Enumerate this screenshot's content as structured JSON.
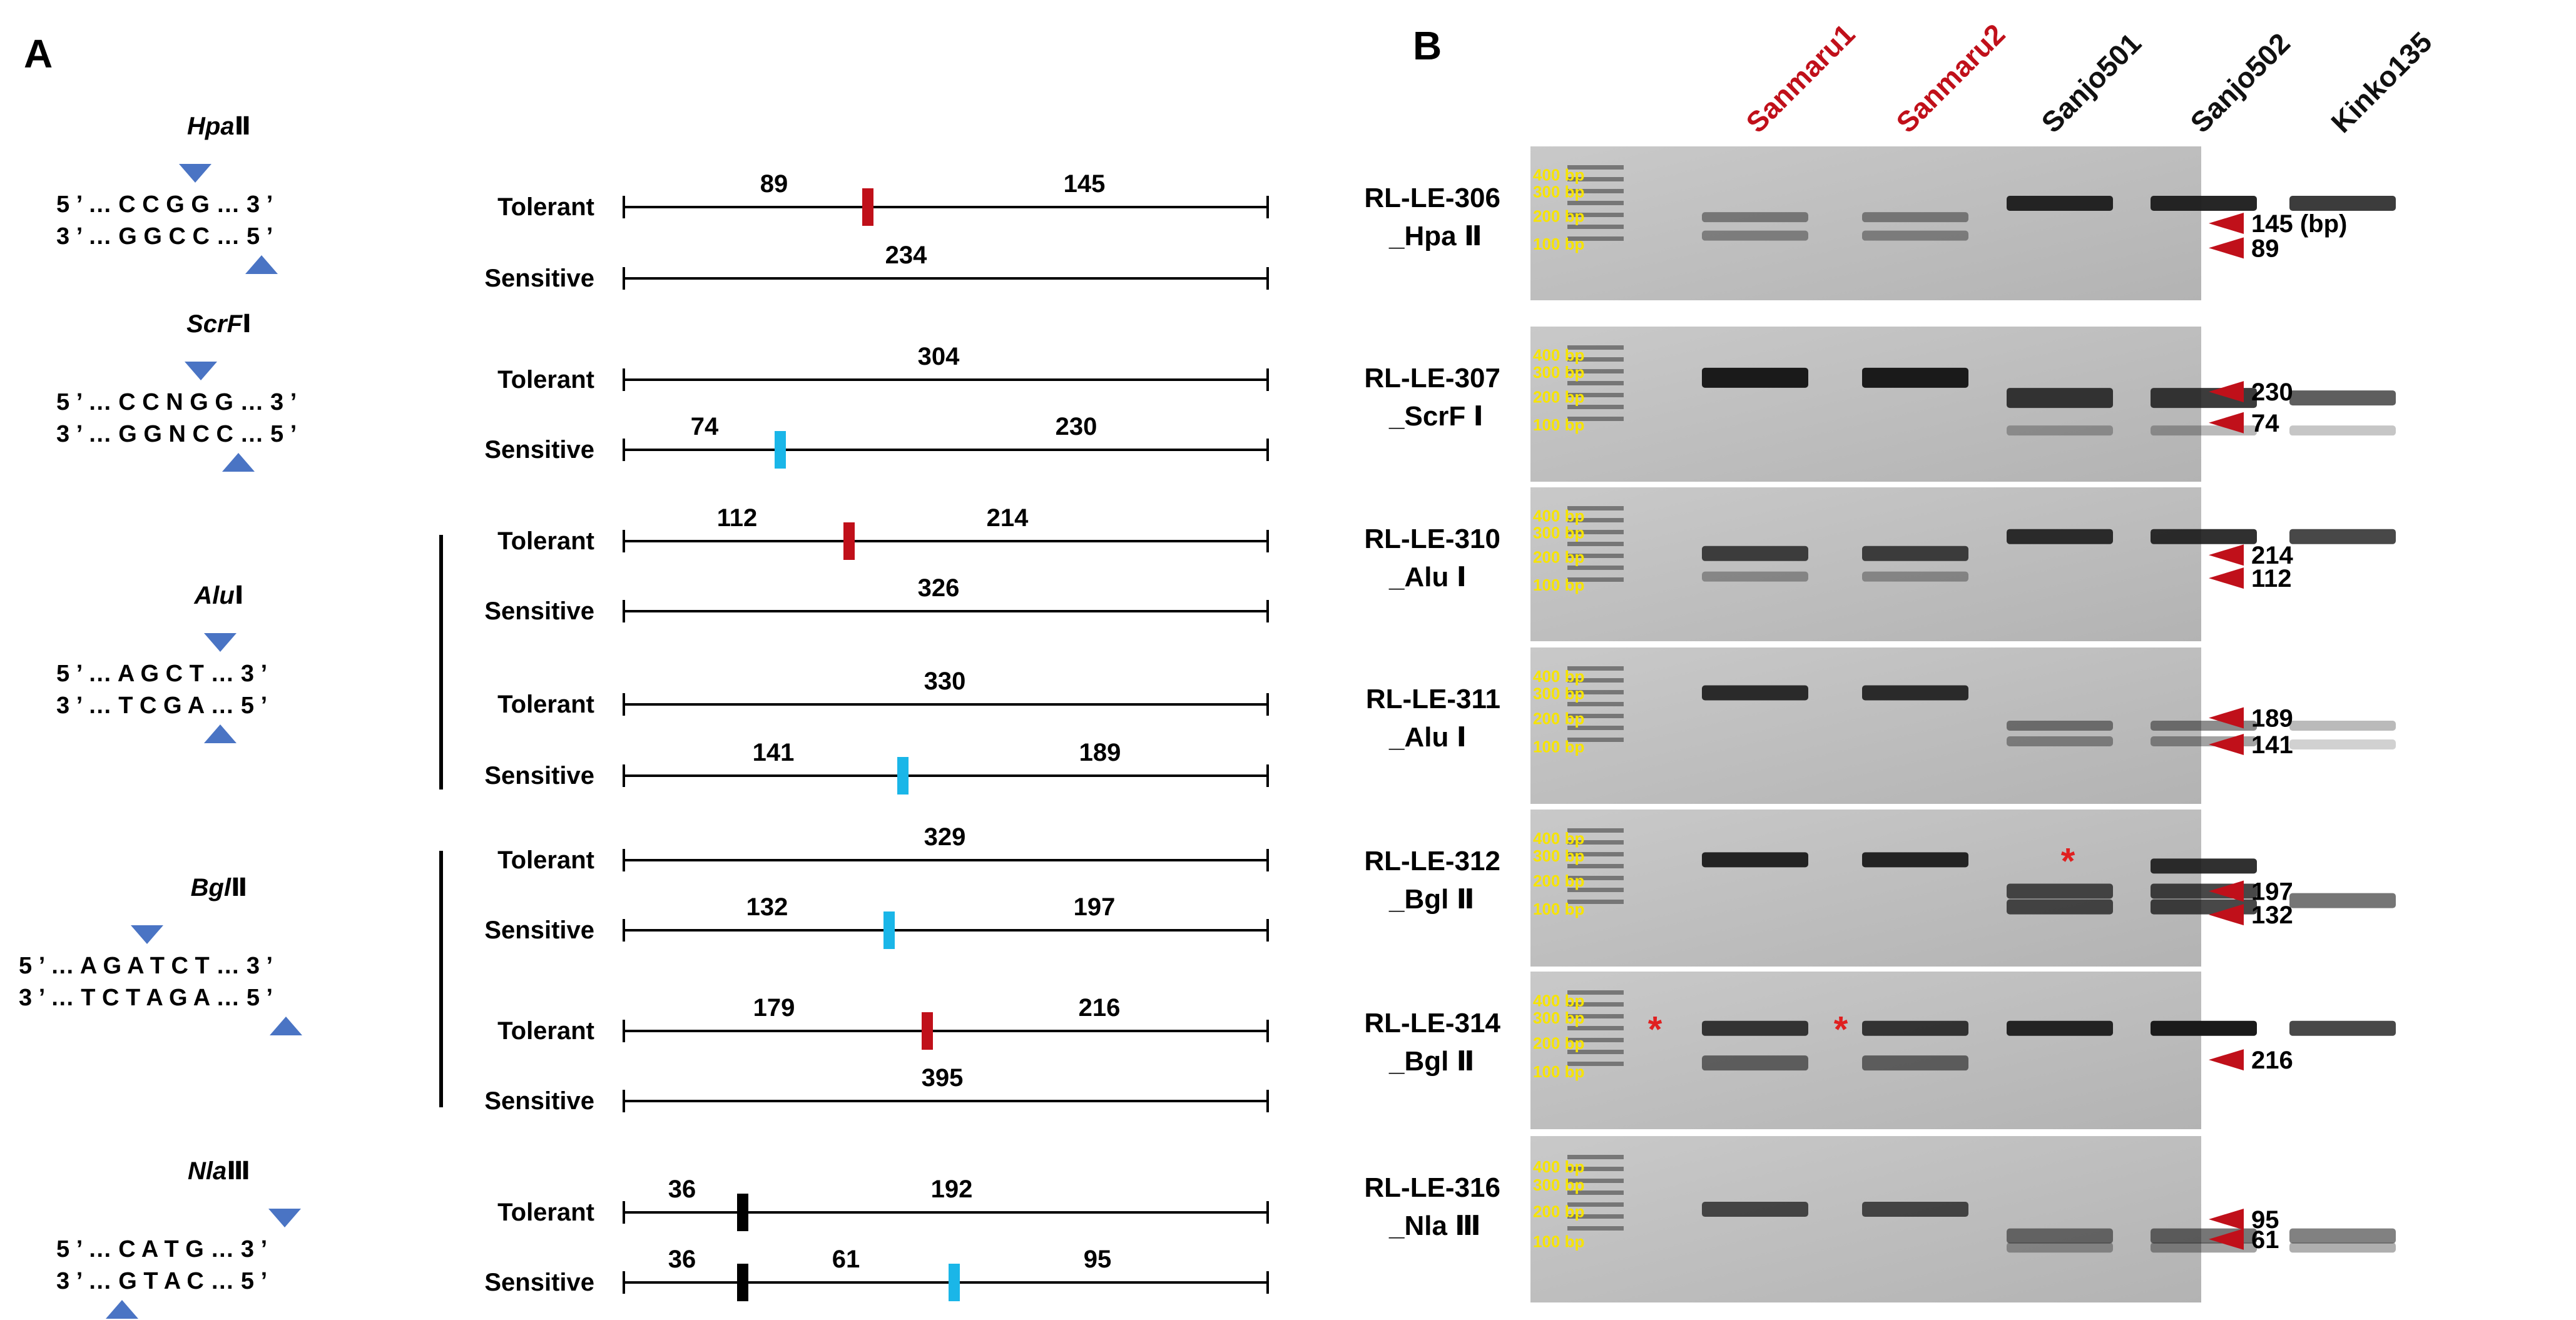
{
  "panel_a": {
    "label": "A",
    "enzymes": [
      {
        "name": "Hpa",
        "numeral": "Ⅱ",
        "top": "5 ’ … C C G G … 3 ’",
        "bottom": "3 ’ … G G C C … 5 ’"
      },
      {
        "name": "ScrF",
        "numeral": "Ⅰ",
        "top": "5 ’ … C C N G G … 3 ’",
        "bottom": "3 ’ … G G N C C … 5 ’"
      },
      {
        "name": "Alu",
        "numeral": "Ⅰ",
        "top": "5 ’ … A G C T … 3 ’",
        "bottom": "3 ’ … T C G A … 5 ’"
      },
      {
        "name": "Bgl",
        "numeral": "Ⅱ",
        "top": "5 ’ … A G A T C T … 3 ’",
        "bottom": "3 ’ … T C T A G A … 5 ’"
      },
      {
        "name": "Nla",
        "numeral": "Ⅲ",
        "top": "5 ’ … C A T G … 3 ’",
        "bottom": "3 ’ … G T A C … 5 ’"
      }
    ],
    "rows": [
      {
        "label": "Tolerant",
        "frags": [
          "89",
          "145"
        ],
        "cut": "red"
      },
      {
        "label": "Sensitive",
        "frags": [
          "234"
        ],
        "cut": ""
      },
      {
        "label": "Tolerant",
        "frags": [
          "304"
        ],
        "cut": ""
      },
      {
        "label": "Sensitive",
        "frags": [
          "74",
          "230"
        ],
        "cut": "blue"
      },
      {
        "label": "Tolerant",
        "frags": [
          "112",
          "214"
        ],
        "cut": "red"
      },
      {
        "label": "Sensitive",
        "frags": [
          "326"
        ],
        "cut": ""
      },
      {
        "label": "Tolerant",
        "frags": [
          "330"
        ],
        "cut": ""
      },
      {
        "label": "Sensitive",
        "frags": [
          "141",
          "189"
        ],
        "cut": "blue"
      },
      {
        "label": "Tolerant",
        "frags": [
          "329"
        ],
        "cut": ""
      },
      {
        "label": "Sensitive",
        "frags": [
          "132",
          "197"
        ],
        "cut": "blue"
      },
      {
        "label": "Tolerant",
        "frags": [
          "179",
          "216"
        ],
        "cut": "red"
      },
      {
        "label": "Sensitive",
        "frags": [
          "395"
        ],
        "cut": ""
      },
      {
        "label": "Tolerant",
        "frags": [
          "36",
          "192"
        ],
        "cut": "black"
      },
      {
        "label": "Sensitive",
        "frags": [
          "36",
          "61",
          "95"
        ],
        "cut": "black+blue"
      }
    ]
  },
  "panel_b": {
    "label": "B",
    "lanes": [
      {
        "name": "Sanmaru1",
        "color": "#c0101a"
      },
      {
        "name": "Sanmaru2",
        "color": "#c0101a"
      },
      {
        "name": "Sanjo501",
        "color": "#111111"
      },
      {
        "name": "Sanjo502",
        "color": "#111111"
      },
      {
        "name": "Kinko135",
        "color": "#111111"
      }
    ],
    "ladder": [
      "400 bp",
      "300 bp",
      "200 bp",
      "100 bp"
    ],
    "gels": [
      {
        "marker": "RL-LE-306",
        "enzyme": "_Hpa Ⅱ",
        "sizes": [
          "145 (bp)",
          "89"
        ]
      },
      {
        "marker": "RL-LE-307",
        "enzyme": "_ScrF Ⅰ",
        "sizes": [
          "230",
          "74"
        ]
      },
      {
        "marker": "RL-LE-310",
        "enzyme": "_Alu Ⅰ",
        "sizes": [
          "214",
          "112"
        ]
      },
      {
        "marker": "RL-LE-311",
        "enzyme": "_Alu Ⅰ",
        "sizes": [
          "189",
          "141"
        ]
      },
      {
        "marker": "RL-LE-312",
        "enzyme": "_Bgl Ⅱ",
        "sizes": [
          "197",
          "132"
        ]
      },
      {
        "marker": "RL-LE-314",
        "enzyme": "_Bgl Ⅱ",
        "sizes": [
          "216"
        ]
      },
      {
        "marker": "RL-LE-316",
        "enzyme": "_Nla Ⅲ",
        "sizes": [
          "95",
          "61"
        ]
      }
    ],
    "asterisk": "*"
  },
  "colors": {
    "tolerant_cut": "#c0101a",
    "sensitive_cut": "#1ab6e8",
    "fixed_cut": "#000000",
    "site_arrow": "#4a74c4",
    "ladder_text": "#f7e400",
    "size_arrow": "#c0101a"
  }
}
